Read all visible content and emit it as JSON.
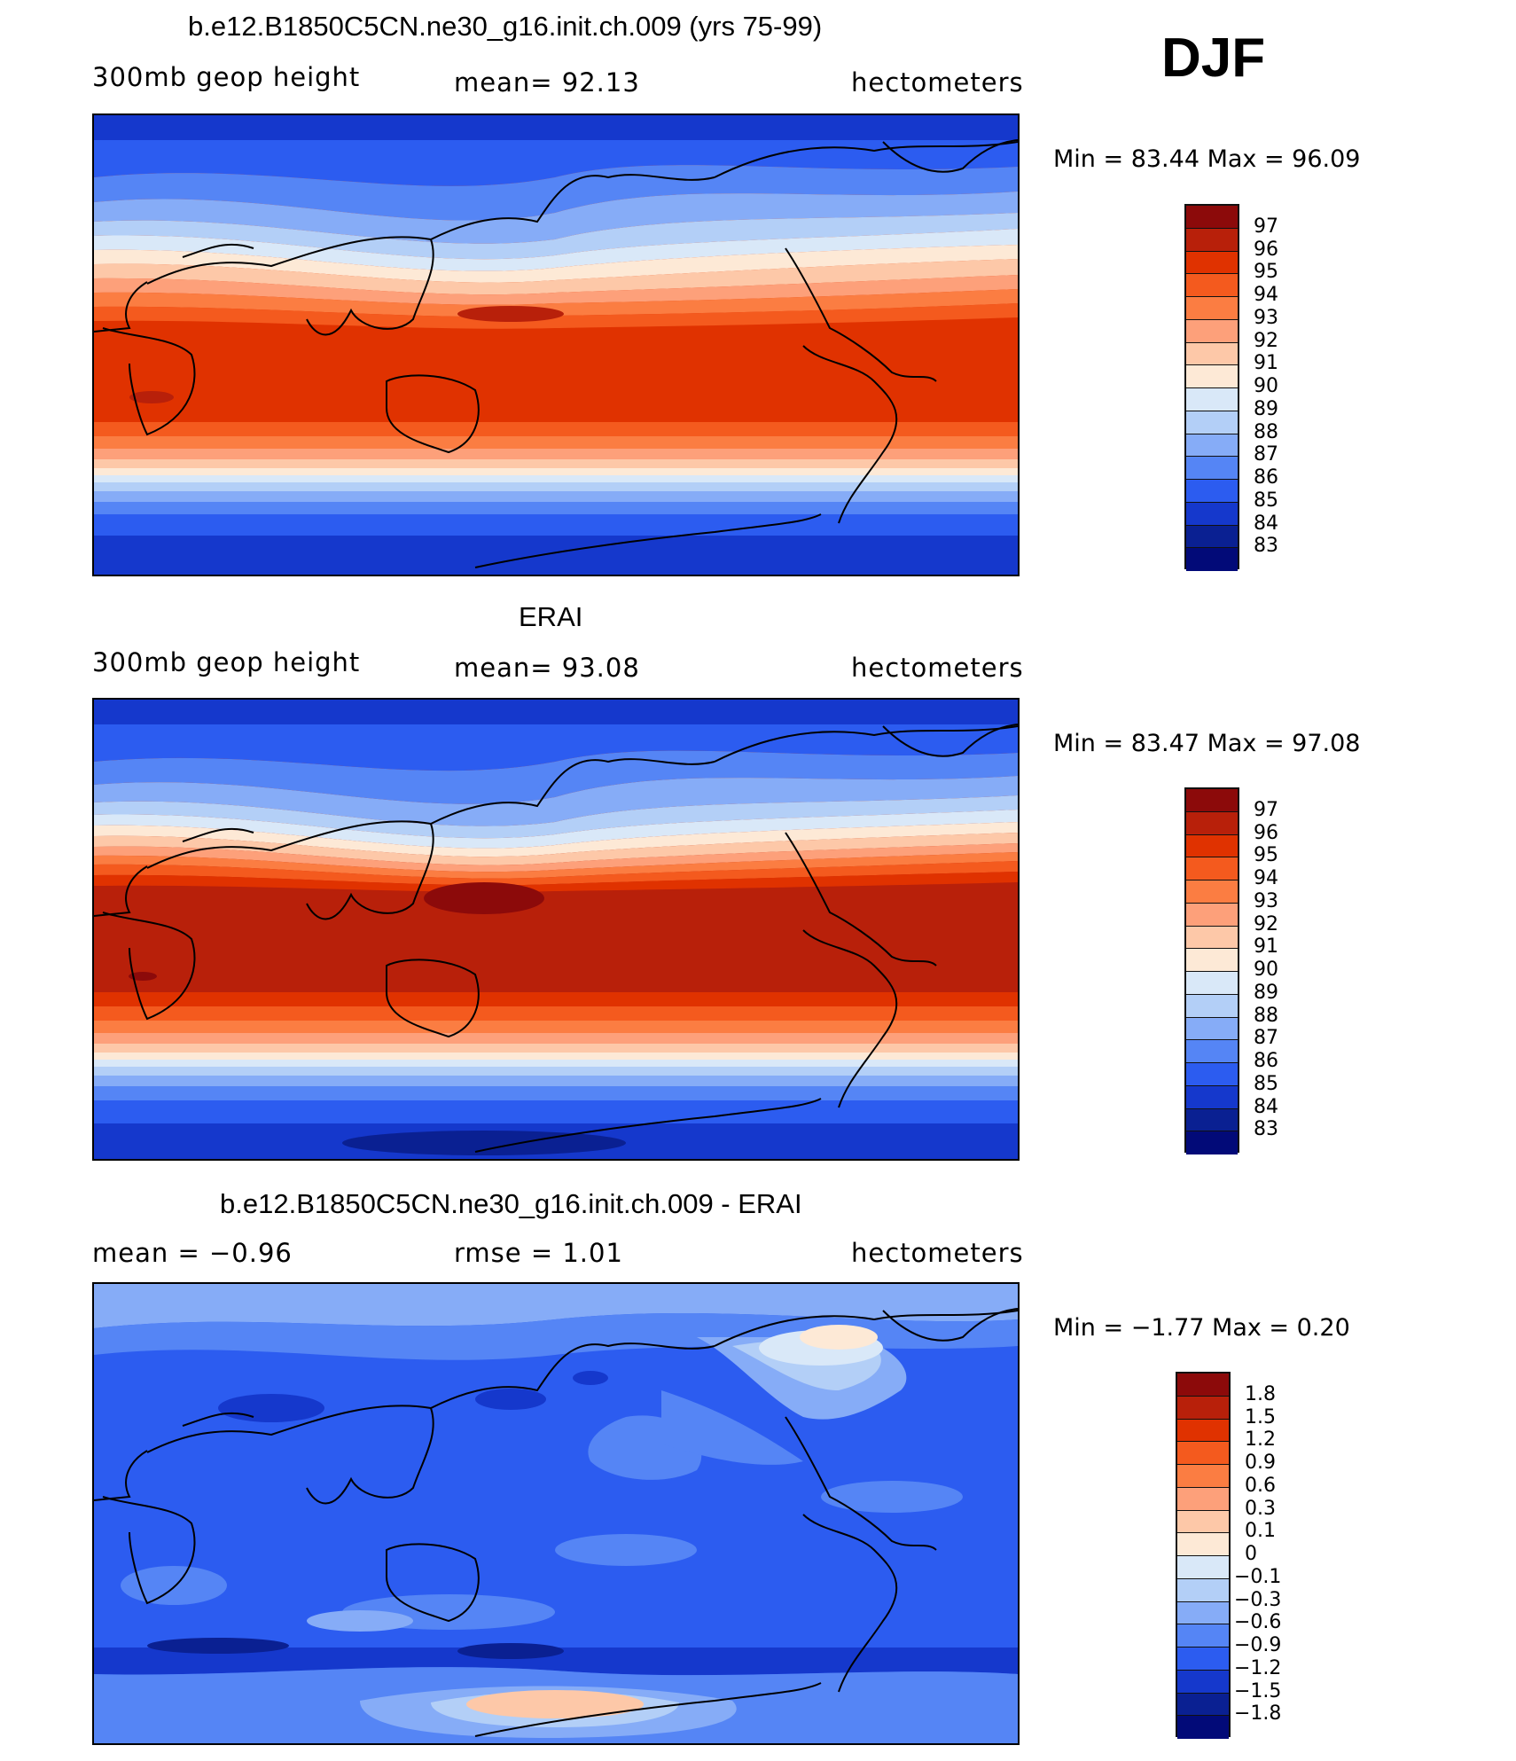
{
  "season": "DJF",
  "panels": [
    {
      "title": "b.e12.B1850C5CN.ne30_g16.init.ch.009 (yrs 75-99)",
      "left_label": "300mb geop height",
      "center_label": "mean=  92.13",
      "right_label": "hectometers",
      "minmax": "Min =   83.44 Max =   96.09",
      "colorbar": {
        "labels": [
          "97",
          "96",
          "95",
          "94",
          "93",
          "92",
          "91",
          "90",
          "89",
          "88",
          "87",
          "86",
          "85",
          "84",
          "83"
        ],
        "colors": [
          "#8c0a0a",
          "#b8200a",
          "#e03200",
          "#f45a1e",
          "#fb7d42",
          "#fda07a",
          "#fdc8a8",
          "#fde9d6",
          "#d9e8f8",
          "#b3cff7",
          "#86acf7",
          "#5585f5",
          "#2c5cf0",
          "#1538cc",
          "#0a2092",
          "#020a78"
        ]
      }
    },
    {
      "title": "ERAI",
      "left_label": "300mb geop height",
      "center_label": "mean=  93.08",
      "right_label": "hectometers",
      "minmax": "Min =   83.47 Max =   97.08",
      "colorbar": {
        "labels": [
          "97",
          "96",
          "95",
          "94",
          "93",
          "92",
          "91",
          "90",
          "89",
          "88",
          "87",
          "86",
          "85",
          "84",
          "83"
        ],
        "colors": [
          "#8c0a0a",
          "#b8200a",
          "#e03200",
          "#f45a1e",
          "#fb7d42",
          "#fda07a",
          "#fdc8a8",
          "#fde9d6",
          "#d9e8f8",
          "#b3cff7",
          "#86acf7",
          "#5585f5",
          "#2c5cf0",
          "#1538cc",
          "#0a2092",
          "#020a78"
        ]
      }
    },
    {
      "title": "b.e12.B1850C5CN.ne30_g16.init.ch.009 - ERAI",
      "left_label": "mean =   −0.96",
      "center_label": "rmse =    1.01",
      "right_label": "hectometers",
      "minmax": "Min =   −1.77 Max =    0.20",
      "colorbar": {
        "labels": [
          "1.8",
          "1.5",
          "1.2",
          "0.9",
          "0.6",
          "0.3",
          "0.1",
          "0",
          "−0.1",
          "−0.3",
          "−0.6",
          "−0.9",
          "−1.2",
          "−1.5",
          "−1.8"
        ],
        "colors": [
          "#8c0a0a",
          "#b8200a",
          "#e03200",
          "#f45a1e",
          "#fb7d42",
          "#fda07a",
          "#fdc8a8",
          "#fde9d6",
          "#d9e8f8",
          "#b3cff7",
          "#86acf7",
          "#5585f5",
          "#2c5cf0",
          "#1538cc",
          "#0a2092",
          "#020a78"
        ]
      }
    }
  ],
  "colors": {
    "dark_red": "#b8200a",
    "red": "#e03200",
    "light_blue": "#86acf7",
    "blue": "#2c5cf0",
    "navy": "#0a2092"
  }
}
